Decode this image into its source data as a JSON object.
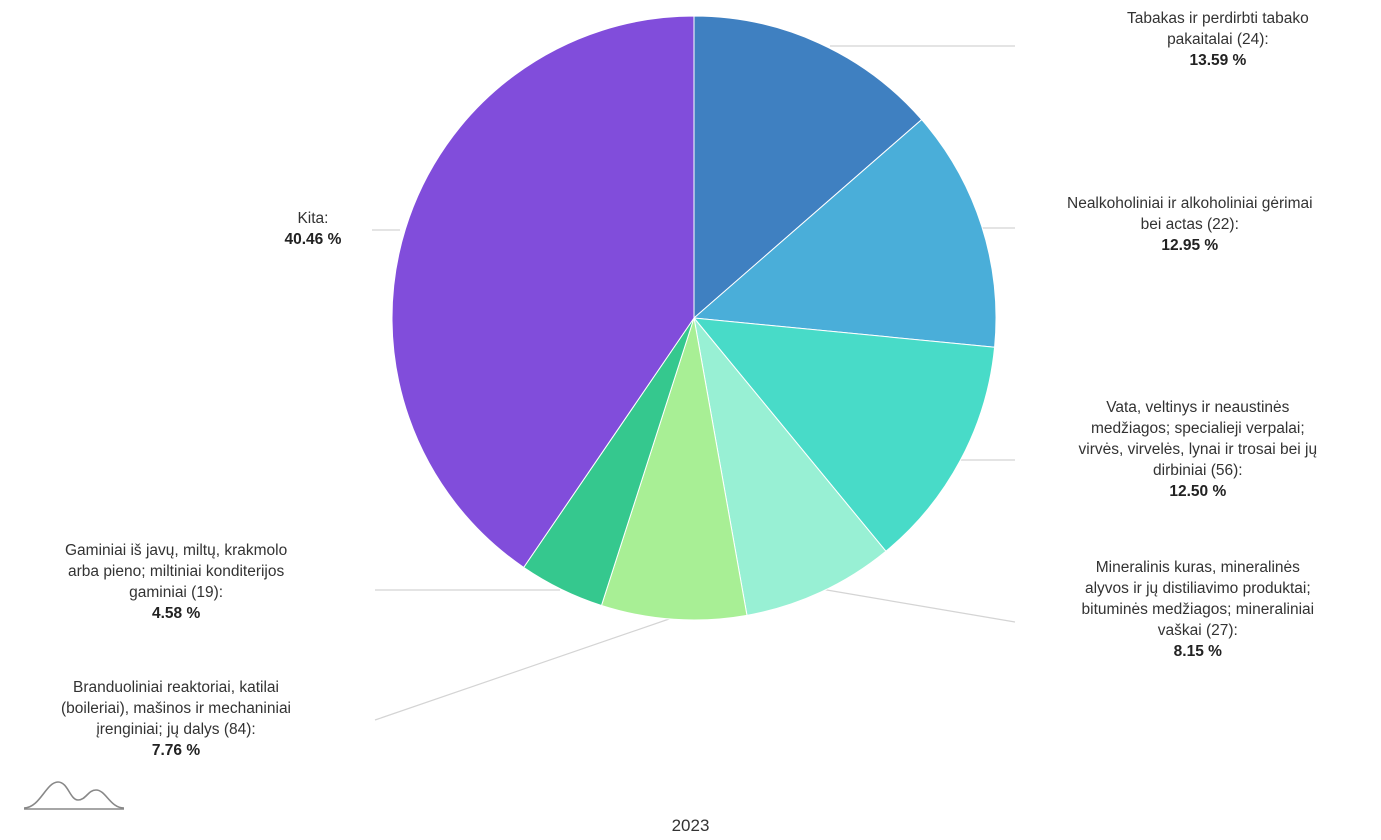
{
  "chart_data": {
    "type": "pie",
    "year_label": "2023",
    "slices": [
      {
        "lines": [
          "Tabakas ir perdirbti tabako",
          "pakaitalai (24):"
        ],
        "value": 13.59,
        "value_label": "13.59 %",
        "color": "#3f80c1"
      },
      {
        "lines": [
          "Nealkoholiniai ir alkoholiniai gėrimai",
          "bei actas (22):"
        ],
        "value": 12.95,
        "value_label": "12.95 %",
        "color": "#4aaed9"
      },
      {
        "lines": [
          "Vata, veltinys ir neaustinės",
          "medžiagos; specialieji verpalai;",
          "virvės, virvelės, lynai ir trosai bei jų",
          "dirbiniai (56):"
        ],
        "value": 12.5,
        "value_label": "12.50 %",
        "color": "#48dbc8"
      },
      {
        "lines": [
          "Mineralinis kuras, mineralinės",
          "alyvos ir jų distiliavimo produktai;",
          "bituminės medžiagos; mineraliniai",
          "vaškai (27):"
        ],
        "value": 8.15,
        "value_label": "8.15 %",
        "color": "#98f0d4"
      },
      {
        "lines": [
          "Branduoliniai reaktoriai, katilai",
          "(boileriai), mašinos ir mechaniniai",
          "įrenginiai; jų dalys (84):"
        ],
        "value": 7.76,
        "value_label": "7.76 %",
        "color": "#a8ef95"
      },
      {
        "lines": [
          "Gaminiai iš javų, miltų, krakmolo",
          "arba pieno; miltiniai konditerijos",
          "gaminiai (19):"
        ],
        "value": 4.58,
        "value_label": "4.58 %",
        "color": "#35c88e"
      },
      {
        "lines": [
          "Kita:"
        ],
        "value": 40.46,
        "value_label": "40.46 %",
        "color": "#814ddb"
      }
    ]
  }
}
